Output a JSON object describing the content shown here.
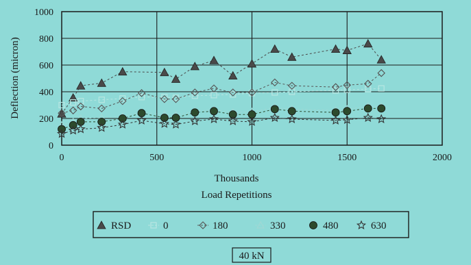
{
  "chart_data": {
    "type": "line",
    "title": "",
    "caption": "40 kN",
    "xlabel": "Thousands",
    "xlabel2": "Load Repetitions",
    "ylabel": "Deflection (micron)",
    "xlim": [
      0,
      2000
    ],
    "ylim": [
      0,
      1000
    ],
    "xticks": [
      "0",
      "500",
      "1000",
      "1500",
      "2000"
    ],
    "yticks": [
      "0",
      "200",
      "400",
      "600",
      "800",
      "1000"
    ],
    "grid": true,
    "legend_position": "bottom",
    "series": [
      {
        "name": "RSD",
        "marker": "triangle-filled",
        "color": "#4a4a4a",
        "line": "dash",
        "x": [
          0,
          60,
          100,
          210,
          320,
          540,
          600,
          700,
          800,
          900,
          1000,
          1120,
          1210,
          1440,
          1500,
          1610,
          1680
        ],
        "y": [
          235,
          355,
          445,
          465,
          550,
          545,
          495,
          590,
          635,
          520,
          610,
          720,
          660,
          720,
          710,
          760,
          640
        ]
      },
      {
        "name": "0",
        "marker": "square-faint",
        "color": "#b8e6e2",
        "line": "dash",
        "x": [
          0,
          60,
          100,
          210,
          320,
          420,
          540,
          600,
          700,
          800,
          900,
          1000,
          1120,
          1210,
          1440,
          1500,
          1610,
          1680
        ],
        "y": [
          300,
          320,
          330,
          340,
          350,
          360,
          360,
          355,
          370,
          375,
          380,
          390,
          395,
          400,
          410,
          415,
          420,
          425
        ]
      },
      {
        "name": "180",
        "marker": "diamond-open",
        "color": "#555555",
        "line": "dash",
        "x": [
          0,
          60,
          100,
          210,
          320,
          420,
          540,
          600,
          700,
          800,
          900,
          1000,
          1120,
          1210,
          1440,
          1500,
          1610,
          1680
        ],
        "y": [
          240,
          260,
          290,
          275,
          330,
          390,
          345,
          345,
          395,
          425,
          395,
          395,
          470,
          445,
          435,
          450,
          460,
          540
        ]
      },
      {
        "name": "330",
        "marker": "triangle-open",
        "color": "#9fd8d4",
        "line": "dash",
        "x": [
          0,
          60,
          100,
          210,
          320,
          420,
          540,
          600,
          700,
          800,
          900,
          1000,
          1120,
          1210,
          1440,
          1500,
          1610,
          1680
        ],
        "y": [
          150,
          175,
          200,
          205,
          215,
          250,
          230,
          225,
          255,
          265,
          245,
          250,
          280,
          270,
          260,
          270,
          290,
          290
        ]
      },
      {
        "name": "480",
        "marker": "circle-filled",
        "color": "#2d4a2d",
        "line": "dash",
        "x": [
          0,
          60,
          100,
          210,
          320,
          420,
          540,
          600,
          700,
          800,
          900,
          1000,
          1120,
          1210,
          1440,
          1500,
          1610,
          1680
        ],
        "y": [
          120,
          150,
          175,
          175,
          200,
          240,
          205,
          205,
          245,
          255,
          230,
          230,
          270,
          255,
          245,
          255,
          275,
          275
        ]
      },
      {
        "name": "630",
        "marker": "star-open",
        "color": "#333333",
        "line": "dash",
        "x": [
          0,
          60,
          100,
          210,
          320,
          420,
          540,
          600,
          700,
          800,
          900,
          1000,
          1120,
          1210,
          1440,
          1500,
          1610,
          1680
        ],
        "y": [
          85,
          110,
          120,
          130,
          155,
          185,
          160,
          155,
          180,
          195,
          180,
          175,
          205,
          195,
          185,
          190,
          205,
          195
        ]
      }
    ]
  }
}
